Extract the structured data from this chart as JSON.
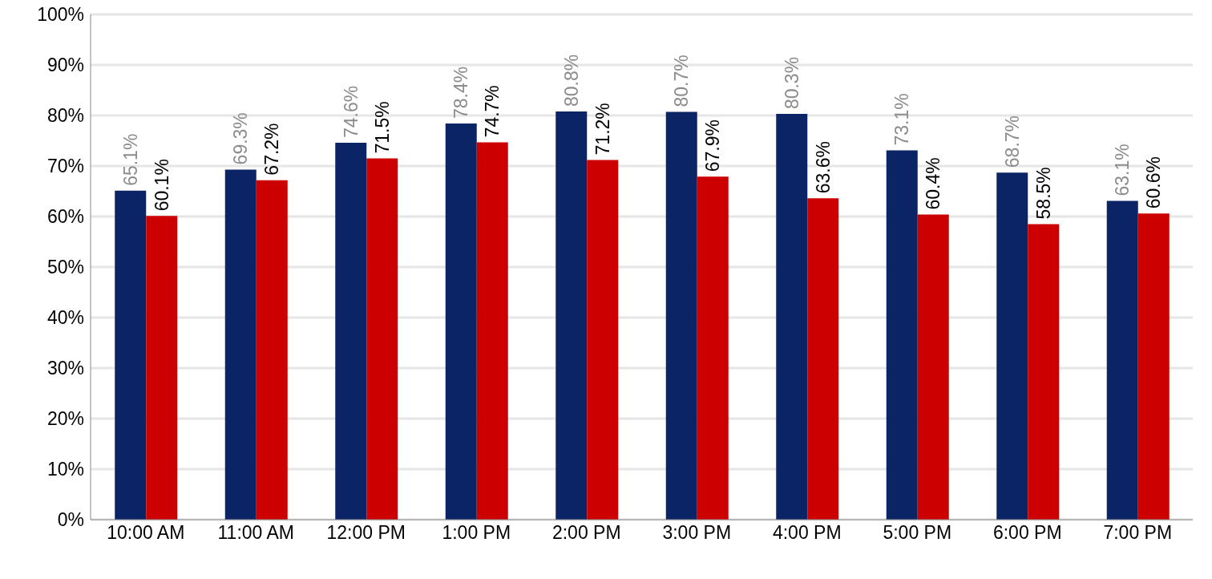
{
  "chart_data": {
    "type": "bar",
    "categories": [
      "10:00 AM",
      "11:00 AM",
      "12:00 PM",
      "1:00 PM",
      "2:00 PM",
      "3:00 PM",
      "4:00 PM",
      "5:00 PM",
      "6:00 PM",
      "7:00 PM"
    ],
    "series": [
      {
        "color": "#0b2466",
        "values": [
          65.1,
          69.3,
          74.6,
          78.4,
          80.8,
          80.7,
          80.3,
          73.1,
          68.7,
          63.1
        ],
        "value_labels": [
          "65.1%",
          "69.3%",
          "74.6%",
          "78.4%",
          "80.8%",
          "80.7%",
          "80.3%",
          "73.1%",
          "68.7%",
          "63.1%"
        ]
      },
      {
        "color": "#cc0000",
        "values": [
          60.1,
          67.2,
          71.5,
          74.7,
          71.2,
          67.9,
          63.6,
          60.4,
          58.5,
          60.6
        ],
        "value_labels": [
          "60.1%",
          "67.2%",
          "71.5%",
          "74.7%",
          "71.2%",
          "67.9%",
          "63.6%",
          "60.4%",
          "58.5%",
          "60.6%"
        ]
      }
    ],
    "ylim": [
      0,
      100
    ],
    "yticks": [
      {
        "value": 0,
        "label": "0%"
      },
      {
        "value": 10,
        "label": "10%"
      },
      {
        "value": 20,
        "label": "20%"
      },
      {
        "value": 30,
        "label": "30%"
      },
      {
        "value": 40,
        "label": "40%"
      },
      {
        "value": 50,
        "label": "50%"
      },
      {
        "value": 60,
        "label": "60%"
      },
      {
        "value": 70,
        "label": "70%"
      },
      {
        "value": 80,
        "label": "80%"
      },
      {
        "value": 90,
        "label": "90%"
      },
      {
        "value": 100,
        "label": "100%"
      }
    ],
    "grid": "y",
    "legend": false
  }
}
